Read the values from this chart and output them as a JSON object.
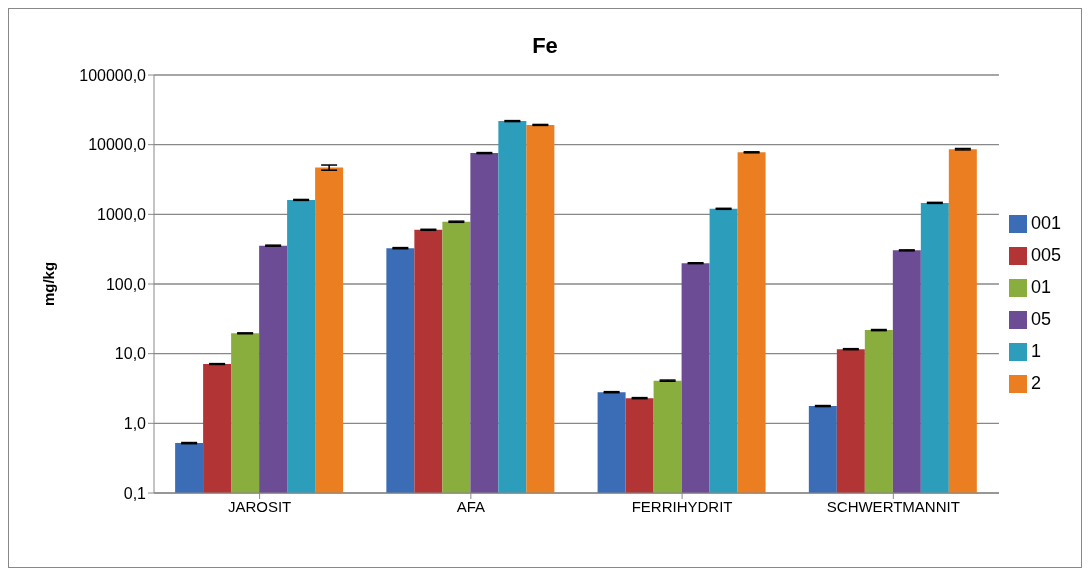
{
  "chart_data": {
    "type": "bar",
    "title": "Fe",
    "ylabel": "mg/kg",
    "categories": [
      "JAROSIT",
      "AFA",
      "FERRIHYDRIT",
      "SCHWERTMANNIT"
    ],
    "series": [
      {
        "name": "001",
        "color": "#3a6db5",
        "values": [
          0.52,
          327,
          2.8,
          1.77
        ],
        "errors": [
          0.01,
          6,
          0.05,
          0.03
        ]
      },
      {
        "name": "005",
        "color": "#b33434",
        "values": [
          7.1,
          600,
          2.3,
          11.6
        ],
        "errors": [
          0.1,
          10,
          0.04,
          0.2
        ]
      },
      {
        "name": "01",
        "color": "#8aae3e",
        "values": [
          19.6,
          783,
          4.1,
          21.8
        ],
        "errors": [
          0.3,
          15,
          0.08,
          0.4
        ]
      },
      {
        "name": "05",
        "color": "#6c4c94",
        "values": [
          355,
          7570,
          199,
          304
        ],
        "errors": [
          6,
          130,
          3,
          5
        ]
      },
      {
        "name": "1",
        "color": "#2c9dbb",
        "values": [
          1610,
          21800,
          1200,
          1460
        ],
        "errors": [
          25,
          350,
          20,
          25
        ]
      },
      {
        "name": "2",
        "color": "#ec7e22",
        "values": [
          4700,
          19200,
          7770,
          8610
        ],
        "errors": [
          400,
          300,
          130,
          200
        ]
      }
    ],
    "log": true,
    "ylim": [
      0.1,
      100000
    ],
    "yticks": [
      {
        "value": 0.1,
        "label": "0,1"
      },
      {
        "value": 1,
        "label": "1,0"
      },
      {
        "value": 10,
        "label": "10,0"
      },
      {
        "value": 100,
        "label": "100,0"
      },
      {
        "value": 1000,
        "label": "1000,0"
      },
      {
        "value": 10000,
        "label": "10000,0"
      },
      {
        "value": 100000,
        "label": "100000,0"
      }
    ],
    "grid": "y",
    "legend": "right"
  }
}
